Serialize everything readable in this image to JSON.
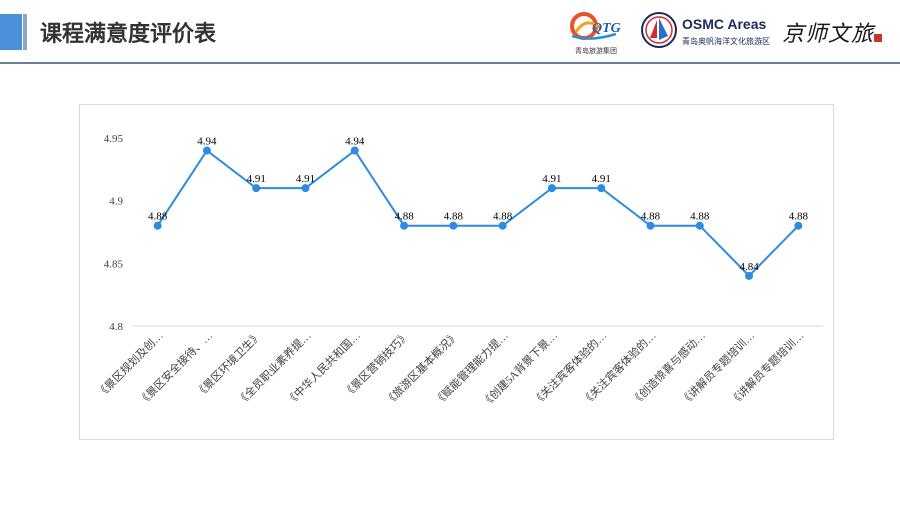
{
  "header": {
    "title": "课程满意度评价表",
    "logos": {
      "qtg": {
        "mark": "QTG",
        "caption": "青岛旅游集团"
      },
      "osmc": {
        "title": "OSMC Areas",
        "subtitle": "青岛奥帆海洋文化旅游区"
      },
      "jsw": {
        "text": "京师文旅"
      }
    }
  },
  "colors": {
    "accent": "#4a90d9",
    "line": "#2d8be0",
    "marker": "#2d8be0",
    "grid": "#d9d9d9"
  },
  "chart_data": {
    "type": "line",
    "title": "",
    "xlabel": "",
    "ylabel": "",
    "ylim": [
      4.8,
      4.95
    ],
    "yticks": [
      "4.8",
      "4.85",
      "4.9",
      "4.95"
    ],
    "ytick_values": [
      4.8,
      4.85,
      4.9,
      4.95
    ],
    "grid": false,
    "categories": [
      "《景区规划及创…",
      "《景区安全接待、…",
      "《景区环境卫生》",
      "《全员职业素养提…",
      "《中华人民共和国…",
      "《景区营销技巧》",
      "《旅游区基本概况》",
      "《赋能管理能力提…",
      "《创建5A背景下景…",
      "《关注宾客体验的…",
      "《关注宾客体验的…",
      "《创造惊喜与感动…",
      "《讲解员专题培训…",
      "《讲解员专题培训…"
    ],
    "values": [
      4.88,
      4.94,
      4.91,
      4.91,
      4.94,
      4.88,
      4.88,
      4.88,
      4.91,
      4.91,
      4.88,
      4.88,
      4.84,
      4.88
    ],
    "data_labels": [
      "4.88",
      "4.94",
      "4.91",
      "4.91",
      "4.94",
      "4.88",
      "4.88",
      "4.88",
      "4.91",
      "4.91",
      "4.88",
      "4.88",
      "4.84",
      "4.88"
    ]
  }
}
